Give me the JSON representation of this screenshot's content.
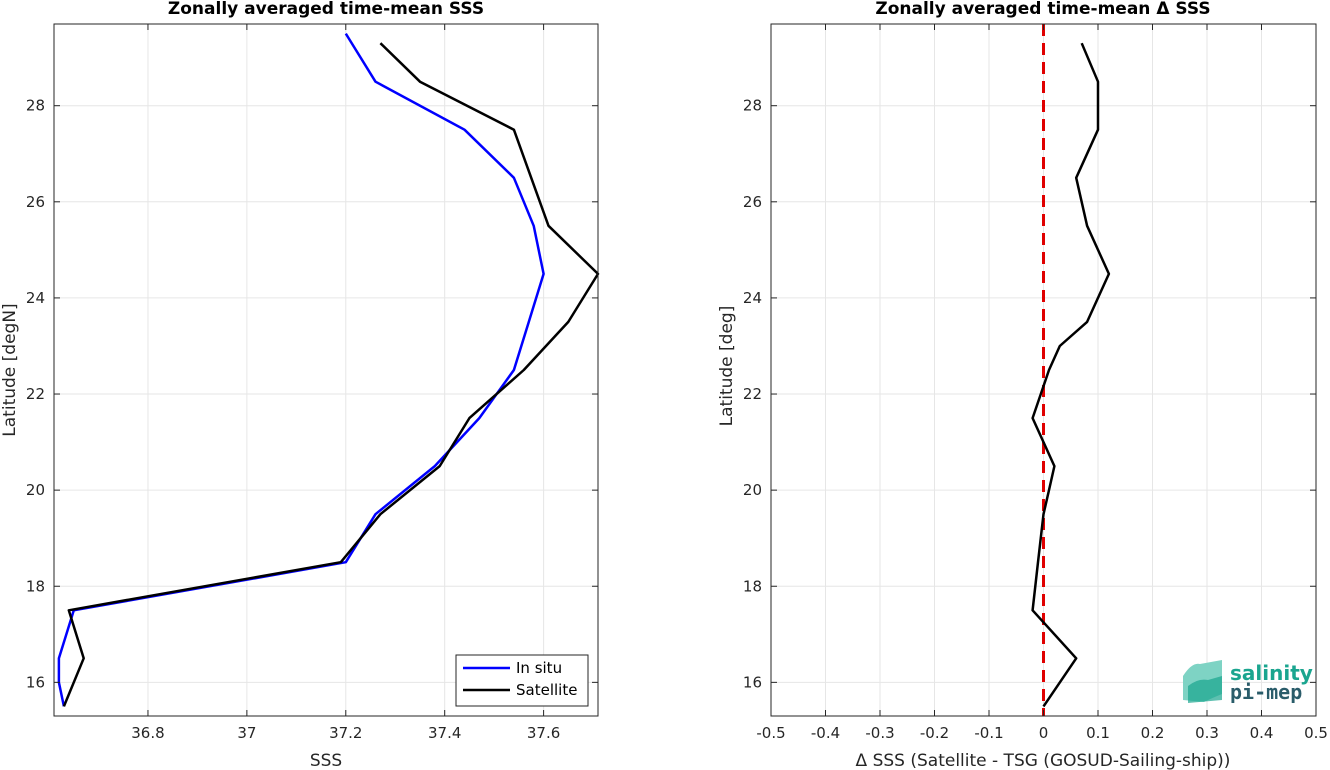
{
  "chart_data": [
    {
      "type": "line",
      "title": "Zonally averaged time-mean SSS",
      "xlabel": "SSS",
      "ylabel": "Latitude [degN]",
      "xlim": [
        36.61,
        37.71
      ],
      "ylim": [
        15.3,
        29.7
      ],
      "xticks": [
        "36.8",
        "37",
        "37.2",
        "37.4",
        "37.6"
      ],
      "yticks": [
        "16",
        "18",
        "20",
        "22",
        "24",
        "26",
        "28"
      ],
      "grid": true,
      "legend": "bottom-right",
      "series": [
        {
          "name": "In situ",
          "color": "#0000ff",
          "x": [
            36.63,
            36.62,
            36.62,
            36.65,
            37.2,
            37.26,
            37.38,
            37.47,
            37.54,
            37.57,
            37.6,
            37.58,
            37.54,
            37.44,
            37.26,
            37.2
          ],
          "y": [
            15.5,
            16.0,
            16.5,
            17.5,
            18.5,
            19.5,
            20.5,
            21.5,
            22.5,
            23.5,
            24.5,
            25.5,
            26.5,
            27.5,
            28.5,
            29.5
          ]
        },
        {
          "name": "Satellite",
          "color": "#000000",
          "x": [
            36.63,
            36.67,
            36.64,
            37.19,
            37.27,
            37.39,
            37.45,
            37.56,
            37.65,
            37.71,
            37.61,
            37.54,
            37.35,
            37.27
          ],
          "y": [
            15.5,
            16.5,
            17.5,
            18.5,
            19.5,
            20.5,
            21.5,
            22.5,
            23.5,
            24.5,
            25.5,
            27.5,
            28.5,
            29.3
          ]
        }
      ]
    },
    {
      "type": "line",
      "title": "Zonally averaged time-mean Δ SSS",
      "xlabel": "Δ SSS (Satellite - TSG (GOSUD-Sailing-ship))",
      "ylabel": "Latitude [deg]",
      "xlim": [
        -0.5,
        0.5
      ],
      "ylim": [
        15.3,
        29.7
      ],
      "xticks": [
        "-0.5",
        "-0.4",
        "-0.3",
        "-0.2",
        "-0.1",
        "0",
        "0.1",
        "0.2",
        "0.3",
        "0.4",
        "0.5"
      ],
      "yticks": [
        "16",
        "18",
        "20",
        "22",
        "24",
        "26",
        "28"
      ],
      "grid": true,
      "reference_line": {
        "x": 0,
        "color": "#e00000",
        "style": "dashed"
      },
      "series": [
        {
          "color": "#000000",
          "x": [
            0.0,
            0.06,
            -0.02,
            -0.01,
            0.0,
            0.01,
            0.02,
            -0.02,
            0.01,
            0.03,
            0.08,
            0.12,
            0.08,
            0.06,
            0.1,
            0.1,
            0.07
          ],
          "y": [
            15.5,
            16.5,
            17.5,
            18.5,
            19.5,
            20.0,
            20.5,
            21.5,
            22.5,
            23.0,
            23.5,
            24.5,
            25.5,
            26.5,
            27.5,
            28.5,
            29.3
          ]
        }
      ]
    }
  ],
  "logo": {
    "line1": "salinity",
    "line2": "pi-mep"
  }
}
